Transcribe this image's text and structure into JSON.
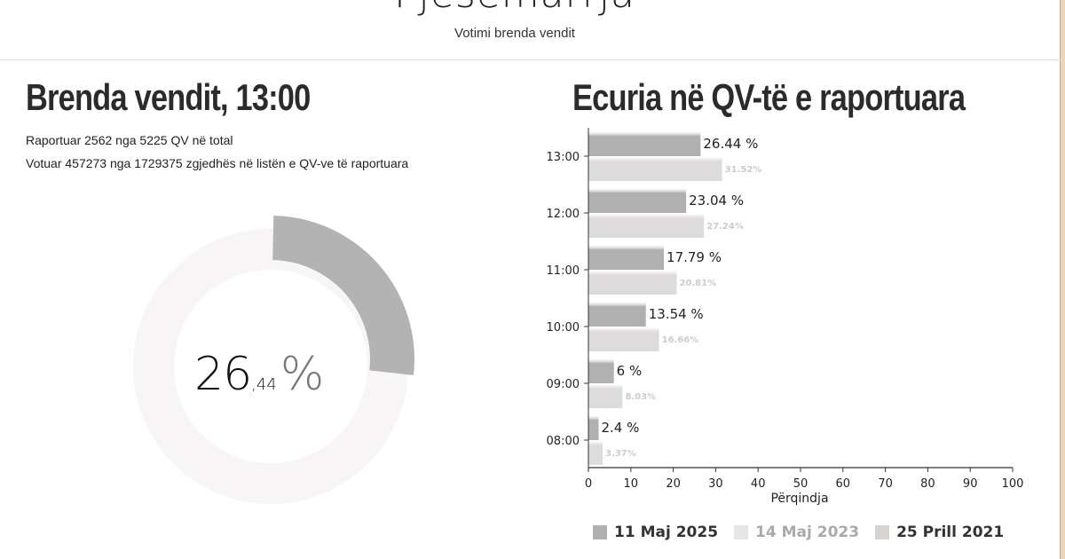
{
  "header": {
    "title": "Pjesëmarrja",
    "subtitle": "Votimi brenda vendit"
  },
  "left_panel": {
    "title": "Brenda vendit, 13:00",
    "info_line_1": "Raportuar 2562 nga 5225 QV në total",
    "info_line_2": "Votuar 457273 nga 1729375 zgjedhës në listën e QV-ve të raportuara",
    "donut": {
      "value": 26.44,
      "integer_part": "26",
      "decimal_part": ",44",
      "percent_sign": "%",
      "fill_color": "#b3b3b3",
      "track_color": "#f7f5f5"
    }
  },
  "right_panel": {
    "title": "Ecuria në QV-të e raportuara"
  },
  "legend": [
    {
      "label": "11 Maj 2025",
      "color": "#b0b0b0",
      "text_color": "#333333"
    },
    {
      "label": "14 Maj 2023",
      "color": "#e6e6e6",
      "text_color": "#aaaaaa"
    },
    {
      "label": "25 Prill 2021",
      "color": "#d6d3d1",
      "text_color": "#333333"
    }
  ],
  "chart_data": {
    "type": "bar",
    "orientation": "horizontal",
    "title": "Ecuria në QV-të e raportuara",
    "xlabel": "Përqindja",
    "ylabel": "",
    "xlim": [
      0,
      100
    ],
    "x_ticks": [
      0,
      10,
      20,
      30,
      40,
      50,
      60,
      70,
      80,
      90,
      100
    ],
    "categories": [
      "13:00",
      "12:00",
      "11:00",
      "10:00",
      "09:00",
      "08:00"
    ],
    "series": [
      {
        "name": "11 Maj 2025",
        "color": "#b0b0b0",
        "values": [
          26.44,
          23.04,
          17.79,
          13.54,
          6,
          2.4
        ],
        "labels": [
          "26.44 %",
          "23.04 %",
          "17.79 %",
          "13.54 %",
          "6 %",
          "2.4 %"
        ]
      },
      {
        "name": "14 Maj 2023",
        "color": "#dedcdb",
        "values": [
          31.52,
          27.24,
          20.81,
          16.66,
          8.03,
          3.37
        ],
        "labels": [
          "31.52%",
          "27.24%",
          "20.81%",
          "16.66%",
          "8.03%",
          "3.37%"
        ]
      },
      {
        "name": "25 Prill 2021",
        "color": "#d6d3d1",
        "values": [],
        "labels": []
      }
    ],
    "grid": false,
    "legend_position": "bottom"
  }
}
